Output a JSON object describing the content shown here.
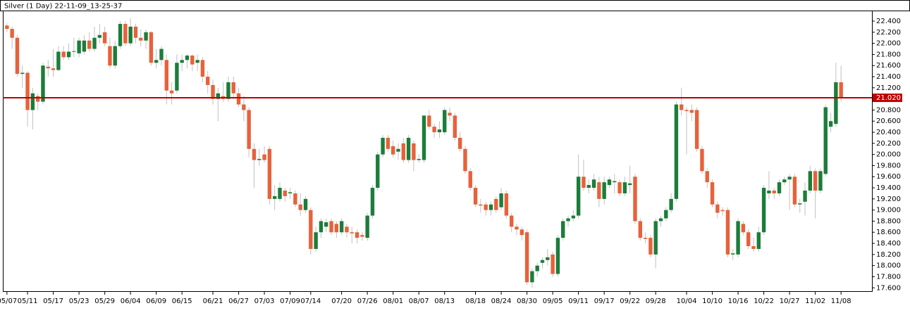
{
  "chart_data": {
    "type": "candlestick",
    "title": "Silver (1 Day) 22-11-09_13-25-37",
    "up_color": "#1b7d3a",
    "down_color": "#e8613a",
    "xlim": [
      -0.8,
      168
    ],
    "ylim": [
      17.54,
      22.59
    ],
    "xticks": [
      {
        "value": 0,
        "label": "05/07"
      },
      {
        "value": 4,
        "label": "05/11"
      },
      {
        "value": 9,
        "label": "05/17"
      },
      {
        "value": 14,
        "label": "05/23"
      },
      {
        "value": 19,
        "label": "05/29"
      },
      {
        "value": 24,
        "label": "06/04"
      },
      {
        "value": 29,
        "label": "06/09"
      },
      {
        "value": 34,
        "label": "06/15"
      },
      {
        "value": 40,
        "label": "06/21"
      },
      {
        "value": 45,
        "label": "06/27"
      },
      {
        "value": 50,
        "label": "07/03"
      },
      {
        "value": 55,
        "label": "07/09"
      },
      {
        "value": 59,
        "label": "07/14"
      },
      {
        "value": 65,
        "label": "07/20"
      },
      {
        "value": 70,
        "label": "07/26"
      },
      {
        "value": 75,
        "label": "08/01"
      },
      {
        "value": 80,
        "label": "08/07"
      },
      {
        "value": 85,
        "label": "08/13"
      },
      {
        "value": 91,
        "label": "08/18"
      },
      {
        "value": 96,
        "label": "08/24"
      },
      {
        "value": 101,
        "label": "08/30"
      },
      {
        "value": 106,
        "label": "09/05"
      },
      {
        "value": 111,
        "label": "09/11"
      },
      {
        "value": 116,
        "label": "09/17"
      },
      {
        "value": 121,
        "label": "09/22"
      },
      {
        "value": 126,
        "label": "09/28"
      },
      {
        "value": 132,
        "label": "10/04"
      },
      {
        "value": 137,
        "label": "10/10"
      },
      {
        "value": 142,
        "label": "10/16"
      },
      {
        "value": 147,
        "label": "10/22"
      },
      {
        "value": 152,
        "label": "10/27"
      },
      {
        "value": 157,
        "label": "11/02"
      },
      {
        "value": 162,
        "label": "11/08"
      }
    ],
    "yticks": [
      {
        "value": 17.6,
        "label": "17.600"
      },
      {
        "value": 17.8,
        "label": "17.800"
      },
      {
        "value": 18.0,
        "label": "18.000"
      },
      {
        "value": 18.2,
        "label": "18.200"
      },
      {
        "value": 18.4,
        "label": "18.400"
      },
      {
        "value": 18.6,
        "label": "18.600"
      },
      {
        "value": 18.8,
        "label": "18.800"
      },
      {
        "value": 19.0,
        "label": "19.000"
      },
      {
        "value": 19.2,
        "label": "19.200"
      },
      {
        "value": 19.4,
        "label": "19.400"
      },
      {
        "value": 19.6,
        "label": "19.600"
      },
      {
        "value": 19.8,
        "label": "19.800"
      },
      {
        "value": 20.0,
        "label": "20.000"
      },
      {
        "value": 20.2,
        "label": "20.200"
      },
      {
        "value": 20.4,
        "label": "20.400"
      },
      {
        "value": 20.6,
        "label": "20.600"
      },
      {
        "value": 20.8,
        "label": "20.800"
      },
      {
        "value": 21.0,
        "label": "21.000"
      },
      {
        "value": 21.2,
        "label": "21.200"
      },
      {
        "value": 21.4,
        "label": "21.400"
      },
      {
        "value": 21.6,
        "label": "21.600"
      },
      {
        "value": 21.8,
        "label": "21.800"
      },
      {
        "value": 22.0,
        "label": "22.000"
      },
      {
        "value": 22.2,
        "label": "22.200"
      },
      {
        "value": 22.4,
        "label": "22.400"
      }
    ],
    "price_line": {
      "value": 21.02,
      "label": "21.020",
      "color": "#c00000"
    },
    "ohlc": [
      [
        22.32,
        22.36,
        22.2,
        22.26
      ],
      [
        22.26,
        22.3,
        21.9,
        22.1
      ],
      [
        22.1,
        22.15,
        21.4,
        21.45
      ],
      [
        21.45,
        21.6,
        21.2,
        21.47
      ],
      [
        21.47,
        21.5,
        20.5,
        20.8
      ],
      [
        20.8,
        21.2,
        20.45,
        21.1
      ],
      [
        21.05,
        21.1,
        20.8,
        20.95
      ],
      [
        20.95,
        21.65,
        20.9,
        21.6
      ],
      [
        21.58,
        21.7,
        21.4,
        21.55
      ],
      [
        21.55,
        21.9,
        21.4,
        21.52
      ],
      [
        21.52,
        21.95,
        21.5,
        21.85
      ],
      [
        21.85,
        21.95,
        21.7,
        21.75
      ],
      [
        21.75,
        22.0,
        21.7,
        21.85
      ],
      [
        21.85,
        22.1,
        21.75,
        21.86
      ],
      [
        21.82,
        22.1,
        21.75,
        22.05
      ],
      [
        21.85,
        22.15,
        21.8,
        22.05
      ],
      [
        22.05,
        22.2,
        21.85,
        21.9
      ],
      [
        21.9,
        22.3,
        21.85,
        22.1
      ],
      [
        22.1,
        22.35,
        22.0,
        22.15
      ],
      [
        22.2,
        22.3,
        21.95,
        22.0
      ],
      [
        21.95,
        22.1,
        21.55,
        21.6
      ],
      [
        21.6,
        22.05,
        21.55,
        21.95
      ],
      [
        21.95,
        22.4,
        21.9,
        22.35
      ],
      [
        22.35,
        22.4,
        21.95,
        22.0
      ],
      [
        22.0,
        22.45,
        21.95,
        22.3
      ],
      [
        22.3,
        22.35,
        22.0,
        22.1
      ],
      [
        22.1,
        22.25,
        21.95,
        22.05
      ],
      [
        22.05,
        22.25,
        21.9,
        22.2
      ],
      [
        22.2,
        22.22,
        21.6,
        21.65
      ],
      [
        21.65,
        21.9,
        21.55,
        21.7
      ],
      [
        21.7,
        21.95,
        21.6,
        21.9
      ],
      [
        21.7,
        21.8,
        20.9,
        21.15
      ],
      [
        21.15,
        21.3,
        20.9,
        21.1
      ],
      [
        21.15,
        21.8,
        21.1,
        21.65
      ],
      [
        21.65,
        21.8,
        21.5,
        21.7
      ],
      [
        21.7,
        21.8,
        21.55,
        21.78
      ],
      [
        21.78,
        21.8,
        21.5,
        21.62
      ],
      [
        21.65,
        21.8,
        21.5,
        21.7
      ],
      [
        21.7,
        21.75,
        21.3,
        21.4
      ],
      [
        21.4,
        21.5,
        21.1,
        21.25
      ],
      [
        21.25,
        21.35,
        20.9,
        21.0
      ],
      [
        21.0,
        21.2,
        20.6,
        21.1
      ],
      [
        21.05,
        21.3,
        20.95,
        21.0
      ],
      [
        21.0,
        21.4,
        20.95,
        21.3
      ],
      [
        21.3,
        21.4,
        21.0,
        21.1
      ],
      [
        21.1,
        21.2,
        20.85,
        20.9
      ],
      [
        20.9,
        21.05,
        20.6,
        20.8
      ],
      [
        20.8,
        20.85,
        19.95,
        20.1
      ],
      [
        20.1,
        20.2,
        19.4,
        19.9
      ],
      [
        19.9,
        20.1,
        19.8,
        19.92
      ],
      [
        20.0,
        20.15,
        19.85,
        19.9
      ],
      [
        20.1,
        20.15,
        19.1,
        19.2
      ],
      [
        19.2,
        19.45,
        19.0,
        19.25
      ],
      [
        19.2,
        19.5,
        19.15,
        19.4
      ],
      [
        19.35,
        19.4,
        19.15,
        19.25
      ],
      [
        19.3,
        19.4,
        19.2,
        19.32
      ],
      [
        19.3,
        19.35,
        19.05,
        19.1
      ],
      [
        19.1,
        19.3,
        18.9,
        19.0
      ],
      [
        19.0,
        19.25,
        18.95,
        19.2
      ],
      [
        19.0,
        19.05,
        18.2,
        18.3
      ],
      [
        18.3,
        18.7,
        18.25,
        18.6
      ],
      [
        18.6,
        18.85,
        18.5,
        18.8
      ],
      [
        18.7,
        18.85,
        18.6,
        18.78
      ],
      [
        18.8,
        18.85,
        18.55,
        18.6
      ],
      [
        18.75,
        18.8,
        18.5,
        18.6
      ],
      [
        18.6,
        18.85,
        18.55,
        18.8
      ],
      [
        18.7,
        18.75,
        18.5,
        18.6
      ],
      [
        18.6,
        18.7,
        18.4,
        18.58
      ],
      [
        18.6,
        18.65,
        18.4,
        18.5
      ],
      [
        18.55,
        18.6,
        18.45,
        18.52
      ],
      [
        18.5,
        18.95,
        18.45,
        18.9
      ],
      [
        18.9,
        19.45,
        18.85,
        19.4
      ],
      [
        19.4,
        20.05,
        19.35,
        20.0
      ],
      [
        20.0,
        20.35,
        19.95,
        20.3
      ],
      [
        20.3,
        20.35,
        20.05,
        20.1
      ],
      [
        20.15,
        20.25,
        19.95,
        20.0
      ],
      [
        20.05,
        20.2,
        19.9,
        20.1
      ],
      [
        20.2,
        20.3,
        19.85,
        19.9
      ],
      [
        19.9,
        20.35,
        19.85,
        20.3
      ],
      [
        20.2,
        20.25,
        19.7,
        19.9
      ],
      [
        19.9,
        20.0,
        19.85,
        19.92
      ],
      [
        19.9,
        20.7,
        19.85,
        20.7
      ],
      [
        20.7,
        20.8,
        20.45,
        20.5
      ],
      [
        20.5,
        20.55,
        20.3,
        20.4
      ],
      [
        20.4,
        20.6,
        20.3,
        20.45
      ],
      [
        20.4,
        20.85,
        20.35,
        20.8
      ],
      [
        20.75,
        20.85,
        20.6,
        20.7
      ],
      [
        20.7,
        20.75,
        20.25,
        20.3
      ],
      [
        20.3,
        20.4,
        20.05,
        20.1
      ],
      [
        20.1,
        20.15,
        19.65,
        19.7
      ],
      [
        19.7,
        19.75,
        19.35,
        19.4
      ],
      [
        19.4,
        19.45,
        19.05,
        19.1
      ],
      [
        19.1,
        19.2,
        18.95,
        19.08
      ],
      [
        19.1,
        19.15,
        18.9,
        19.0
      ],
      [
        19.0,
        19.15,
        18.9,
        19.1
      ],
      [
        19.2,
        19.25,
        18.95,
        19.0
      ],
      [
        19.05,
        19.4,
        19.0,
        19.3
      ],
      [
        19.3,
        19.35,
        18.85,
        18.9
      ],
      [
        18.9,
        18.95,
        18.6,
        18.7
      ],
      [
        18.7,
        18.75,
        18.55,
        18.65
      ],
      [
        18.65,
        18.7,
        18.45,
        18.55
      ],
      [
        18.6,
        18.65,
        17.65,
        17.7
      ],
      [
        17.7,
        17.95,
        17.6,
        17.9
      ],
      [
        17.9,
        18.05,
        17.8,
        18.0
      ],
      [
        18.05,
        18.15,
        17.95,
        18.1
      ],
      [
        18.1,
        18.3,
        18.0,
        18.15
      ],
      [
        18.2,
        18.25,
        17.8,
        17.85
      ],
      [
        17.85,
        18.55,
        17.8,
        18.5
      ],
      [
        18.5,
        18.85,
        18.45,
        18.8
      ],
      [
        18.8,
        18.9,
        18.7,
        18.85
      ],
      [
        18.85,
        19.0,
        18.8,
        18.9
      ],
      [
        18.9,
        20.0,
        18.85,
        19.6
      ],
      [
        19.6,
        19.9,
        19.35,
        19.4
      ],
      [
        19.4,
        19.55,
        19.3,
        19.45
      ],
      [
        19.4,
        19.65,
        19.35,
        19.55
      ],
      [
        19.5,
        19.6,
        19.05,
        19.2
      ],
      [
        19.2,
        19.6,
        19.1,
        19.5
      ],
      [
        19.45,
        19.6,
        19.4,
        19.55
      ],
      [
        19.5,
        19.65,
        19.3,
        19.52
      ],
      [
        19.5,
        19.55,
        19.25,
        19.3
      ],
      [
        19.3,
        19.6,
        19.25,
        19.5
      ],
      [
        19.45,
        19.8,
        19.3,
        19.48
      ],
      [
        19.6,
        19.65,
        18.75,
        18.8
      ],
      [
        18.8,
        18.85,
        18.45,
        18.5
      ],
      [
        18.5,
        18.6,
        18.4,
        18.48
      ],
      [
        18.5,
        18.55,
        18.15,
        18.2
      ],
      [
        18.2,
        18.85,
        17.95,
        18.8
      ],
      [
        18.8,
        18.9,
        18.7,
        18.85
      ],
      [
        18.85,
        19.05,
        18.8,
        19.0
      ],
      [
        19.0,
        19.3,
        18.95,
        19.2
      ],
      [
        19.2,
        20.95,
        19.15,
        20.9
      ],
      [
        20.9,
        21.2,
        20.7,
        20.8
      ],
      [
        20.8,
        20.85,
        20.0,
        20.78
      ],
      [
        20.8,
        20.9,
        20.6,
        20.75
      ],
      [
        20.8,
        20.85,
        20.05,
        20.1
      ],
      [
        20.1,
        20.15,
        19.65,
        19.7
      ],
      [
        19.7,
        19.75,
        19.4,
        19.5
      ],
      [
        19.5,
        19.55,
        19.05,
        19.1
      ],
      [
        19.1,
        19.15,
        18.85,
        18.95
      ],
      [
        19.0,
        19.05,
        18.9,
        18.98
      ],
      [
        19.0,
        19.05,
        18.15,
        18.2
      ],
      [
        18.2,
        18.3,
        18.1,
        18.22
      ],
      [
        18.2,
        18.85,
        18.15,
        18.8
      ],
      [
        18.75,
        18.8,
        18.55,
        18.6
      ],
      [
        18.6,
        18.65,
        18.3,
        18.35
      ],
      [
        18.35,
        18.5,
        18.25,
        18.3
      ],
      [
        18.3,
        18.7,
        18.25,
        18.6
      ],
      [
        18.6,
        19.45,
        18.55,
        19.4
      ],
      [
        19.3,
        19.7,
        19.2,
        19.35
      ],
      [
        19.35,
        19.4,
        19.2,
        19.3
      ],
      [
        19.3,
        19.55,
        19.25,
        19.5
      ],
      [
        19.5,
        19.6,
        19.45,
        19.55
      ],
      [
        19.55,
        19.65,
        19.0,
        19.6
      ],
      [
        19.6,
        19.65,
        19.05,
        19.1
      ],
      [
        19.1,
        19.2,
        18.95,
        19.12
      ],
      [
        19.15,
        19.5,
        18.9,
        19.35
      ],
      [
        19.35,
        19.8,
        19.3,
        19.7
      ],
      [
        19.7,
        19.75,
        18.85,
        19.35
      ],
      [
        19.35,
        19.75,
        19.3,
        19.7
      ],
      [
        19.65,
        20.9,
        19.6,
        20.85
      ],
      [
        20.5,
        20.75,
        20.4,
        20.6
      ],
      [
        20.55,
        21.65,
        20.5,
        21.3
      ],
      [
        21.3,
        21.6,
        20.95,
        21.02
      ]
    ]
  }
}
